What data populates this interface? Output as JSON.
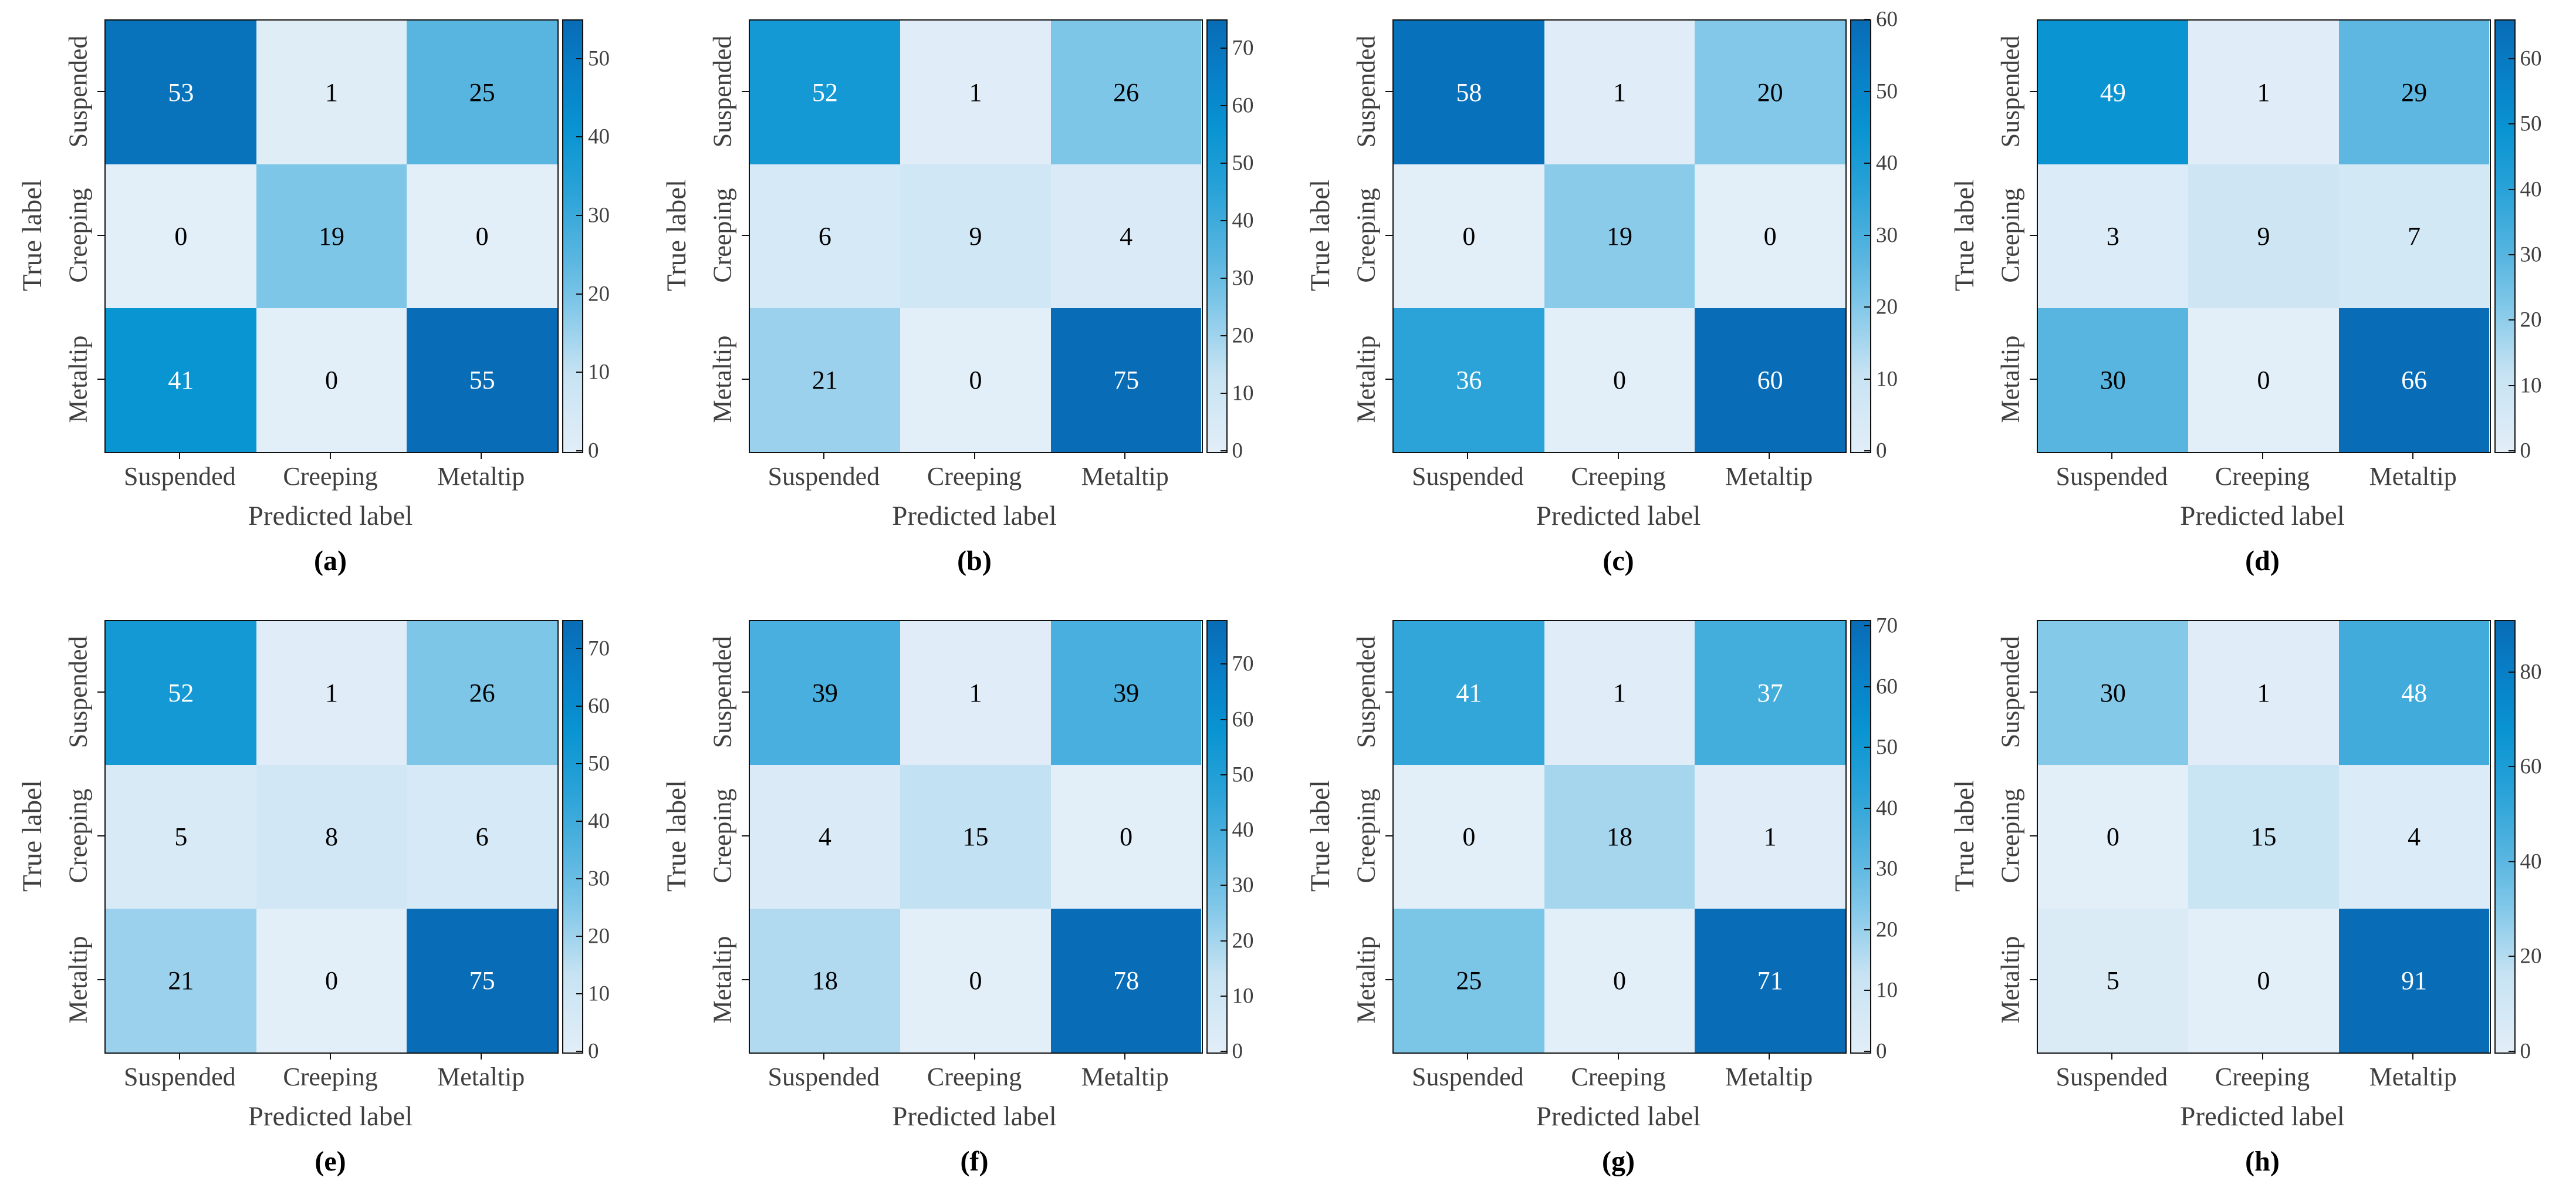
{
  "colors": {
    "background": "#ffffff",
    "axis_line": "#111111",
    "axis_text": "#3f3f3f",
    "cell_text_dark": "#000000",
    "cell_text_light": "#ffffff",
    "colormap_stops": [
      [
        0.0,
        "#e2eef8"
      ],
      [
        0.18,
        "#c7e3f3"
      ],
      [
        0.345,
        "#7ec6e8"
      ],
      [
        0.455,
        "#57b5e0"
      ],
      [
        0.6,
        "#2ba3d8"
      ],
      [
        0.745,
        "#0994d2"
      ],
      [
        0.87,
        "#0880c8"
      ],
      [
        1.0,
        "#086cb6"
      ]
    ]
  },
  "chart_data": [
    {
      "type": "heatmap",
      "panel": "(a)",
      "xlabel": "Predicted label",
      "ylabel": "True label",
      "x_categories": [
        "Suspended",
        "Creeping",
        "Metaltip"
      ],
      "y_categories": [
        "Suspended",
        "Creeping",
        "Metaltip"
      ],
      "values": [
        [
          53,
          1,
          25
        ],
        [
          0,
          19,
          0
        ],
        [
          41,
          0,
          55
        ]
      ],
      "vmin": 0,
      "vmax": 55,
      "colorbar_ticks": [
        0,
        10,
        20,
        30,
        40,
        50
      ]
    },
    {
      "type": "heatmap",
      "panel": "(b)",
      "xlabel": "Predicted label",
      "ylabel": "True label",
      "x_categories": [
        "Suspended",
        "Creeping",
        "Metaltip"
      ],
      "y_categories": [
        "Suspended",
        "Creeping",
        "Metaltip"
      ],
      "values": [
        [
          52,
          1,
          26
        ],
        [
          6,
          9,
          4
        ],
        [
          21,
          0,
          75
        ]
      ],
      "vmin": 0,
      "vmax": 75,
      "colorbar_ticks": [
        0,
        10,
        20,
        30,
        40,
        50,
        60,
        70
      ]
    },
    {
      "type": "heatmap",
      "panel": "(c)",
      "xlabel": "Predicted label",
      "ylabel": "True label",
      "x_categories": [
        "Suspended",
        "Creeping",
        "Metaltip"
      ],
      "y_categories": [
        "Suspended",
        "Creeping",
        "Metaltip"
      ],
      "values": [
        [
          58,
          1,
          20
        ],
        [
          0,
          19,
          0
        ],
        [
          36,
          0,
          60
        ]
      ],
      "vmin": 0,
      "vmax": 60,
      "colorbar_ticks": [
        0,
        10,
        20,
        30,
        40,
        50,
        60
      ]
    },
    {
      "type": "heatmap",
      "panel": "(d)",
      "xlabel": "Predicted label",
      "ylabel": "True label",
      "x_categories": [
        "Suspended",
        "Creeping",
        "Metaltip"
      ],
      "y_categories": [
        "Suspended",
        "Creeping",
        "Metaltip"
      ],
      "values": [
        [
          49,
          1,
          29
        ],
        [
          3,
          9,
          7
        ],
        [
          30,
          0,
          66
        ]
      ],
      "vmin": 0,
      "vmax": 66,
      "colorbar_ticks": [
        0,
        10,
        20,
        30,
        40,
        50,
        60
      ]
    },
    {
      "type": "heatmap",
      "panel": "(e)",
      "xlabel": "Predicted label",
      "ylabel": "True label",
      "x_categories": [
        "Suspended",
        "Creeping",
        "Metaltip"
      ],
      "y_categories": [
        "Suspended",
        "Creeping",
        "Metaltip"
      ],
      "values": [
        [
          52,
          1,
          26
        ],
        [
          5,
          8,
          6
        ],
        [
          21,
          0,
          75
        ]
      ],
      "vmin": 0,
      "vmax": 75,
      "colorbar_ticks": [
        0,
        10,
        20,
        30,
        40,
        50,
        60,
        70
      ]
    },
    {
      "type": "heatmap",
      "panel": "(f)",
      "xlabel": "Predicted label",
      "ylabel": "True label",
      "x_categories": [
        "Suspended",
        "Creeping",
        "Metaltip"
      ],
      "y_categories": [
        "Suspended",
        "Creeping",
        "Metaltip"
      ],
      "values": [
        [
          39,
          1,
          39
        ],
        [
          4,
          15,
          0
        ],
        [
          18,
          0,
          78
        ]
      ],
      "vmin": 0,
      "vmax": 78,
      "colorbar_ticks": [
        0,
        10,
        20,
        30,
        40,
        50,
        60,
        70
      ]
    },
    {
      "type": "heatmap",
      "panel": "(g)",
      "xlabel": "Predicted label",
      "ylabel": "True label",
      "x_categories": [
        "Suspended",
        "Creeping",
        "Metaltip"
      ],
      "y_categories": [
        "Suspended",
        "Creeping",
        "Metaltip"
      ],
      "values": [
        [
          41,
          1,
          37
        ],
        [
          0,
          18,
          1
        ],
        [
          25,
          0,
          71
        ]
      ],
      "vmin": 0,
      "vmax": 71,
      "colorbar_ticks": [
        0,
        10,
        20,
        30,
        40,
        50,
        60,
        70
      ]
    },
    {
      "type": "heatmap",
      "panel": "(h)",
      "xlabel": "Predicted label",
      "ylabel": "True label",
      "x_categories": [
        "Suspended",
        "Creeping",
        "Metaltip"
      ],
      "y_categories": [
        "Suspended",
        "Creeping",
        "Metaltip"
      ],
      "values": [
        [
          30,
          1,
          48
        ],
        [
          0,
          15,
          4
        ],
        [
          5,
          0,
          91
        ]
      ],
      "vmin": 0,
      "vmax": 91,
      "colorbar_ticks": [
        0,
        20,
        40,
        60,
        80
      ]
    }
  ]
}
